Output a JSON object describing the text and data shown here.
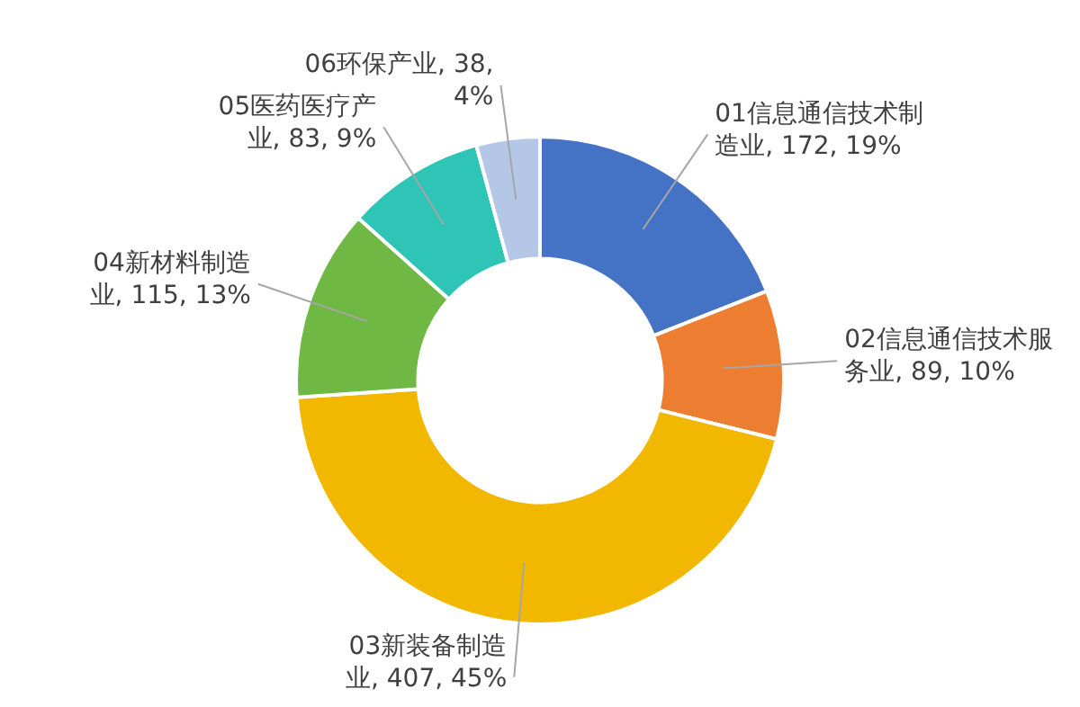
{
  "chart_data": {
    "type": "donut",
    "categories": [
      "01信息通信技术制造业",
      "02信息通信技术服务业",
      "03新装备制造业",
      "04新材料制造业",
      "05医药医疗产业",
      "06环保产业"
    ],
    "values": [
      172,
      89,
      407,
      115,
      83,
      38
    ],
    "colors": [
      "#4472c4",
      "#ed7d31",
      "#f2b800",
      "#70b844",
      "#2ec4b6",
      "#b4c7e7"
    ],
    "value_labels": [
      "172, 19%",
      "89, 10%",
      "407, 45%",
      "115, 13%",
      "83, 9%",
      "38, 4%"
    ]
  }
}
